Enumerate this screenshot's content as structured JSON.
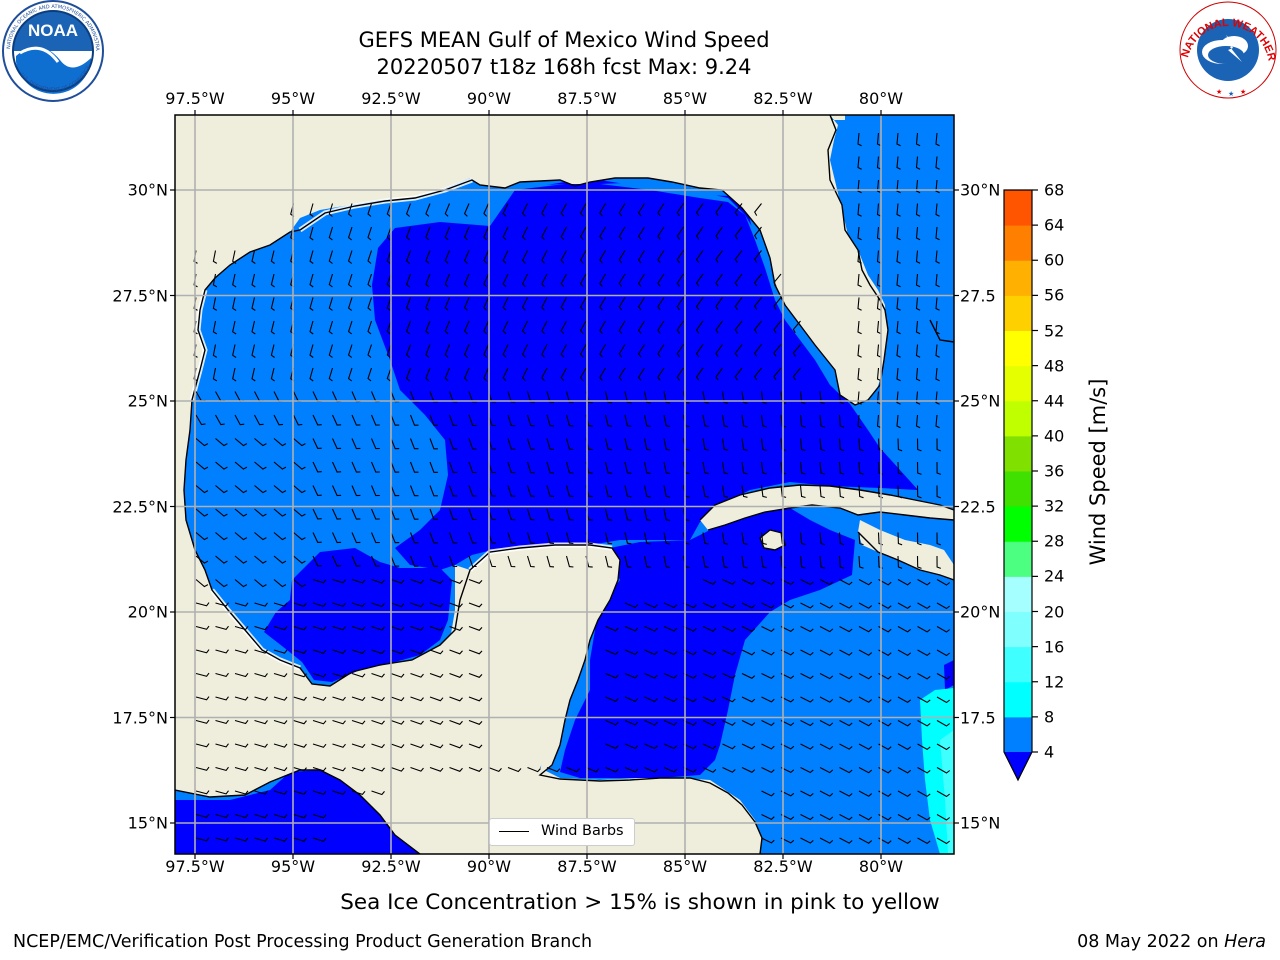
{
  "title": {
    "line1": "GEFS MEAN Gulf of Mexico Wind Speed",
    "line2": "20220507 t18z 168h fcst   Max: 9.24"
  },
  "logos": {
    "left": {
      "name": "NOAA",
      "ring_text": "NATIONAL OCEANIC AND ATMOSPHERIC ADMINISTRATION · U.S. DEPARTMENT OF COMMERCE",
      "center_text": "NOAA"
    },
    "right": {
      "name": "National Weather Service",
      "ring_text": "NATIONAL WEATHER SERVICE"
    }
  },
  "axes": {
    "lon_labels": [
      "97.5°W",
      "95°W",
      "92.5°W",
      "90°W",
      "87.5°W",
      "85°W",
      "82.5°W",
      "80°W"
    ],
    "lat_labels": [
      "30°N",
      "27.5°N",
      "25°N",
      "22.5°N",
      "20°N",
      "17.5°N",
      "15°N"
    ],
    "lat_labels_right": [
      "30°N",
      "27.5",
      "25°N",
      "22.5",
      "20°N",
      "17.5",
      "15°N"
    ],
    "lon_range": [
      -98,
      -78.2
    ],
    "lat_range": [
      14,
      31.7
    ],
    "grid": true
  },
  "colorbar": {
    "label": "Wind Speed [m/s]",
    "ticks": [
      "68",
      "64",
      "60",
      "56",
      "52",
      "48",
      "44",
      "40",
      "36",
      "32",
      "28",
      "24",
      "20",
      "16",
      "12",
      "8",
      "4"
    ],
    "levels": [
      4,
      8,
      12,
      16,
      20,
      24,
      28,
      32,
      36,
      40,
      44,
      48,
      52,
      56,
      60,
      64,
      68
    ],
    "colors": [
      "#0000ff",
      "#0080ff",
      "#00ffff",
      "#40ffff",
      "#80ffff",
      "#a6ffff",
      "#4dff80",
      "#00ff00",
      "#40e000",
      "#80e000",
      "#c0ff00",
      "#e6ff00",
      "#ffff00",
      "#ffd000",
      "#ffb000",
      "#ff8000",
      "#ff5500",
      "#ff2a00",
      "#ff0000"
    ],
    "extend": "min"
  },
  "legend": {
    "label": "Wind Barbs"
  },
  "caption": "Sea Ice Concentration > 15% is shown in pink to yellow",
  "footer": {
    "left": "NCEP/EMC/Verification Post Processing Product Generation Branch",
    "date": "08 May 2022 on ",
    "machine": "Hera"
  },
  "map_colors": {
    "land": "#efeedd",
    "band_4_8": "#0080ff",
    "band_below_4": "#0000ff",
    "band_8_12": "#00ffff",
    "band_12_16": "#40ffff",
    "coast": "#000000",
    "grid": "#b0b0b0"
  }
}
